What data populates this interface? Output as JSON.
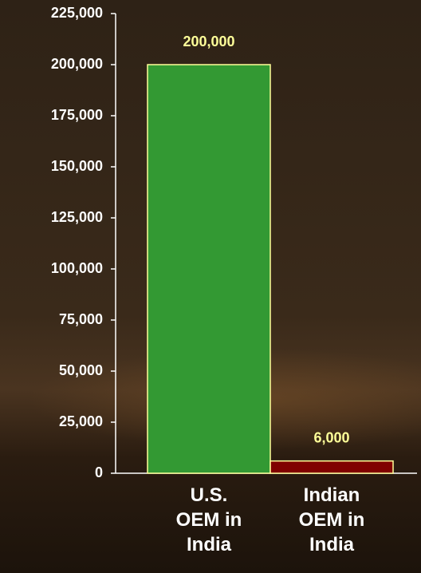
{
  "chart_data": {
    "type": "bar",
    "categories": [
      "U.S. OEM in India",
      "Indian OEM in India"
    ],
    "values": [
      200000,
      6000
    ],
    "value_labels": [
      "200,000",
      "6,000"
    ],
    "colors": [
      "#339933",
      "#800000"
    ],
    "ylim": [
      0,
      225000
    ],
    "yticks": [
      {
        "value": 0,
        "label": "0"
      },
      {
        "value": 25000,
        "label": "25,000"
      },
      {
        "value": 50000,
        "label": "50,000"
      },
      {
        "value": 75000,
        "label": "75,000"
      },
      {
        "value": 100000,
        "label": "100,000"
      },
      {
        "value": 125000,
        "label": "125,000"
      },
      {
        "value": 150000,
        "label": "150,000"
      },
      {
        "value": 175000,
        "label": "175,000"
      },
      {
        "value": 200000,
        "label": "200,000"
      },
      {
        "value": 225000,
        "label": "225,000"
      }
    ],
    "grid": false
  }
}
